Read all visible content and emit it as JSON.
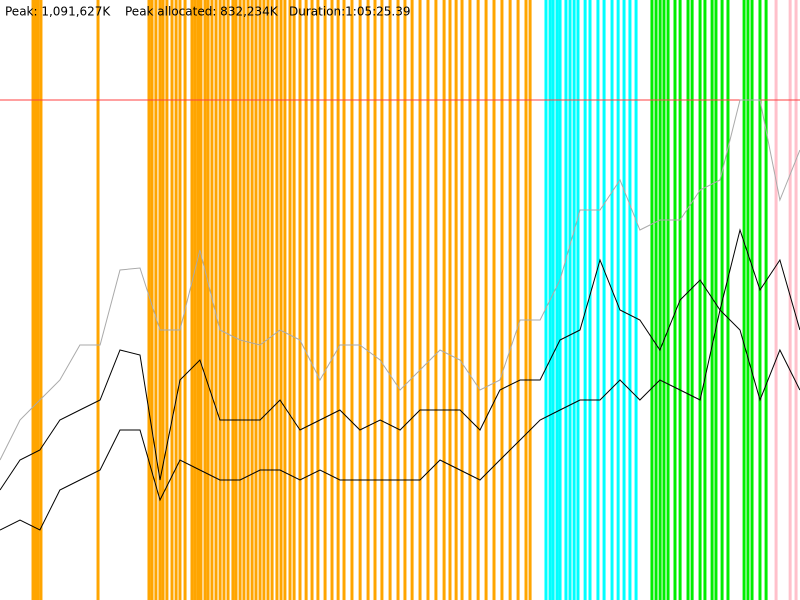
{
  "chart_data": {
    "type": "line",
    "header": [
      "Peak: 1,091,627K",
      "Peak allocated: 832,234K",
      "Duration:1:05:25.39"
    ],
    "xlim": [
      0,
      3925.39
    ],
    "ylim": [
      0,
      1310000
    ],
    "reference_line": {
      "value": 1091627,
      "color": "#ff4040"
    },
    "event_groups": [
      {
        "color": "#ffa500",
        "x": [
          162,
          172,
          186,
          201,
          481,
          731,
          746,
          765,
          785,
          800,
          819,
          844,
          864,
          883,
          908,
          942,
          957,
          972,
          986,
          1006,
          1021,
          1040,
          1060,
          1080,
          1099,
          1119,
          1143,
          1158,
          1178,
          1197,
          1217,
          1237,
          1256,
          1276,
          1295,
          1315,
          1335,
          1359,
          1379,
          1398,
          1423,
          1443,
          1472,
          1502,
          1531,
          1560,
          1595,
          1629,
          1659,
          1688,
          1727,
          1767,
          1806,
          1840,
          1874,
          1914,
          1953,
          1987,
          2022,
          2061,
          2100,
          2139,
          2179,
          2208,
          2238,
          2267,
          2306,
          2346,
          2385,
          2424,
          2463,
          2503,
          2542,
          2581,
          2601
        ]
      },
      {
        "color": "#00ffff",
        "x": [
          2679,
          2699,
          2714,
          2733,
          2748,
          2777,
          2797,
          2817,
          2836,
          2871,
          2895,
          2934,
          2964,
          3003,
          3033,
          3062,
          3091,
          3121
        ]
      },
      {
        "color": "#00ee00",
        "x": [
          3199,
          3219,
          3239,
          3258,
          3278,
          3312,
          3337,
          3376,
          3396,
          3435,
          3459,
          3494,
          3513,
          3543,
          3572,
          3651,
          3670,
          3690,
          3729,
          3759
        ]
      },
      {
        "color": "#ffc0cb",
        "x": [
          3808,
          3877,
          3906
        ]
      }
    ],
    "x": [
      0,
      98,
      196,
      294,
      392,
      491,
      589,
      687,
      785,
      883,
      981,
      1079,
      1178,
      1276,
      1374,
      1472,
      1570,
      1668,
      1766,
      1865,
      1963,
      2061,
      2159,
      2257,
      2355,
      2453,
      2552,
      2650,
      2748,
      2846,
      2944,
      3042,
      3140,
      3238,
      3337,
      3435,
      3533,
      3631,
      3729,
      3827,
      3925
    ],
    "series": [
      {
        "color": "#aaaaaa",
        "values": [
          305700,
          393000,
          436700,
          480300,
          556700,
          556700,
          720500,
          724800,
          589500,
          589500,
          764100,
          589500,
          567600,
          556700,
          589500,
          567600,
          480300,
          556700,
          556700,
          524000,
          458500,
          502100,
          545800,
          524000,
          458500,
          480300,
          611300,
          611300,
          698600,
          851500,
          851500,
          917000,
          807800,
          829600,
          829600,
          895100,
          917000,
          1091600,
          1091600,
          873300,
          982500
        ]
      },
      {
        "color": "#000000",
        "values": [
          240200,
          305700,
          327500,
          393000,
          414800,
          436700,
          545800,
          534900,
          262000,
          480300,
          524000,
          393000,
          393000,
          393000,
          436700,
          371200,
          393000,
          414800,
          371200,
          393000,
          371200,
          414800,
          414800,
          414800,
          371200,
          458500,
          480300,
          480300,
          567600,
          589500,
          742300,
          633100,
          611300,
          545800,
          655000,
          698600,
          633100,
          807800,
          676800,
          742300,
          589500
        ]
      },
      {
        "color": "#000000",
        "values": [
          152800,
          174700,
          152800,
          240200,
          262000,
          283800,
          371200,
          371200,
          218300,
          305700,
          283800,
          262000,
          262000,
          283800,
          283800,
          262000,
          283800,
          262000,
          262000,
          262000,
          262000,
          262000,
          305700,
          283800,
          262000,
          305700,
          349300,
          393000,
          414800,
          436700,
          436700,
          480300,
          436700,
          480300,
          458500,
          436700,
          633100,
          589500,
          436700,
          545800,
          458500
        ]
      }
    ]
  }
}
